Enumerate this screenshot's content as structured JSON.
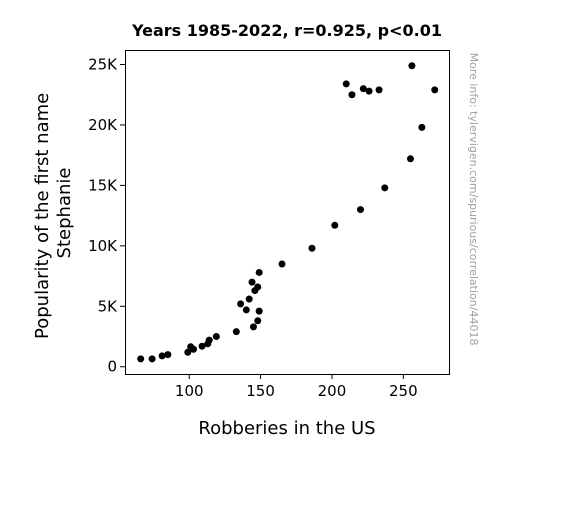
{
  "chart_data": {
    "type": "scatter",
    "title": "Years 1985-2022, r=0.925, p<0.01",
    "xlabel": "Robberies in the US",
    "ylabel_lines": [
      "Popularity of the first name",
      "Stephanie"
    ],
    "watermark": "More info: tylervigen.com/spurious/correlation/44018",
    "xlim": [
      55,
      282
    ],
    "ylim": [
      -600,
      26200
    ],
    "xticks": [
      {
        "value": 100,
        "label": "100"
      },
      {
        "value": 150,
        "label": "150"
      },
      {
        "value": 200,
        "label": "200"
      },
      {
        "value": 250,
        "label": "250"
      }
    ],
    "yticks": [
      {
        "value": 0,
        "label": "0"
      },
      {
        "value": 5000,
        "label": "5K"
      },
      {
        "value": 10000,
        "label": "10K"
      },
      {
        "value": 15000,
        "label": "15K"
      },
      {
        "value": 20000,
        "label": "20K"
      },
      {
        "value": 25000,
        "label": "25K"
      }
    ],
    "marker_color": "#000000",
    "points": [
      {
        "x": 66,
        "y": 650
      },
      {
        "x": 74,
        "y": 650
      },
      {
        "x": 81,
        "y": 900
      },
      {
        "x": 85,
        "y": 1000
      },
      {
        "x": 99,
        "y": 1200
      },
      {
        "x": 101,
        "y": 1650
      },
      {
        "x": 103,
        "y": 1450
      },
      {
        "x": 109,
        "y": 1700
      },
      {
        "x": 113,
        "y": 1900
      },
      {
        "x": 114,
        "y": 2200
      },
      {
        "x": 119,
        "y": 2500
      },
      {
        "x": 133,
        "y": 2900
      },
      {
        "x": 136,
        "y": 5200
      },
      {
        "x": 140,
        "y": 4700
      },
      {
        "x": 142,
        "y": 5600
      },
      {
        "x": 144,
        "y": 7000
      },
      {
        "x": 145,
        "y": 3300
      },
      {
        "x": 146,
        "y": 6300
      },
      {
        "x": 148,
        "y": 6600
      },
      {
        "x": 148,
        "y": 3800
      },
      {
        "x": 149,
        "y": 4600
      },
      {
        "x": 149,
        "y": 7800
      },
      {
        "x": 165,
        "y": 8500
      },
      {
        "x": 186,
        "y": 9800
      },
      {
        "x": 202,
        "y": 11700
      },
      {
        "x": 210,
        "y": 23400
      },
      {
        "x": 214,
        "y": 22500
      },
      {
        "x": 220,
        "y": 13000
      },
      {
        "x": 222,
        "y": 23000
      },
      {
        "x": 226,
        "y": 22800
      },
      {
        "x": 233,
        "y": 22900
      },
      {
        "x": 237,
        "y": 14800
      },
      {
        "x": 255,
        "y": 17200
      },
      {
        "x": 256,
        "y": 24900
      },
      {
        "x": 263,
        "y": 19800
      },
      {
        "x": 272,
        "y": 22900
      }
    ]
  }
}
